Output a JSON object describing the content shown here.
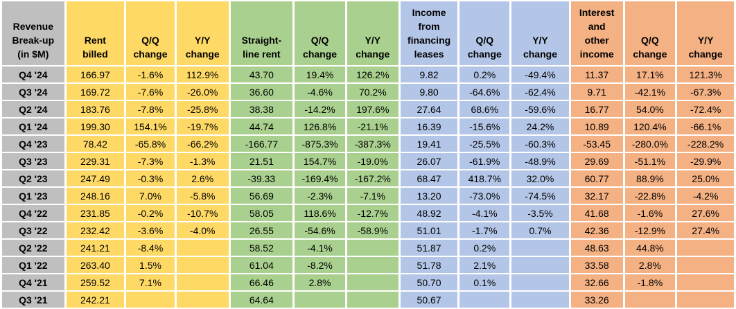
{
  "colors": {
    "gray": "#BFBFBF",
    "yellow": "#FFD966",
    "green": "#A9D08E",
    "blue": "#B4C6E7",
    "orange": "#F4B183"
  },
  "chart_data": {
    "type": "table",
    "title": "Revenue Break-up (in $M)",
    "corner_header": "Revenue\nBreak-up\n(in $M)",
    "columns": [
      {
        "key": "rent-billed",
        "header": "Rent\nbilled",
        "color": "yellow"
      },
      {
        "key": "rent-qq-change",
        "header": "Q/Q\nchange",
        "color": "yellow"
      },
      {
        "key": "rent-yy-change",
        "header": "Y/Y\nchange",
        "color": "yellow"
      },
      {
        "key": "straight-line-rent",
        "header": "Straight-\nline rent",
        "color": "green"
      },
      {
        "key": "slr-qq-change",
        "header": "Q/Q\nchange",
        "color": "green"
      },
      {
        "key": "slr-yy-change",
        "header": "Y/Y\nchange",
        "color": "green"
      },
      {
        "key": "financing-lease-income",
        "header": "Income\nfrom\nfinancing\nleases",
        "color": "blue"
      },
      {
        "key": "fli-qq-change",
        "header": "Q/Q\nchange",
        "color": "blue"
      },
      {
        "key": "fli-yy-change",
        "header": "Y/Y\nchange",
        "color": "blue"
      },
      {
        "key": "interest-other-income",
        "header": "Interest\nand\nother\nincome",
        "color": "orange"
      },
      {
        "key": "ioi-qq-change",
        "header": "Q/Q\nchange",
        "color": "orange"
      },
      {
        "key": "ioi-yy-change",
        "header": "Y/Y\nchange",
        "color": "orange"
      }
    ],
    "categories": [
      "Q4 '24",
      "Q3 '24",
      "Q2 '24",
      "Q1 '24",
      "Q4 '23",
      "Q3 '23",
      "Q2 '23",
      "Q1 '23",
      "Q4 '22",
      "Q3 '22",
      "Q2 '22",
      "Q1 '22",
      "Q4 '21",
      "Q3 '21"
    ],
    "rows": [
      {
        "label": "Q4 '24",
        "cells": [
          "166.97",
          "-1.6%",
          "112.9%",
          "43.70",
          "19.4%",
          "126.2%",
          "9.82",
          "0.2%",
          "-49.4%",
          "11.37",
          "17.1%",
          "121.3%"
        ]
      },
      {
        "label": "Q3 '24",
        "cells": [
          "169.72",
          "-7.6%",
          "-26.0%",
          "36.60",
          "-4.6%",
          "70.2%",
          "9.80",
          "-64.6%",
          "-62.4%",
          "9.71",
          "-42.1%",
          "-67.3%"
        ]
      },
      {
        "label": "Q2 '24",
        "cells": [
          "183.76",
          "-7.8%",
          "-25.8%",
          "38.38",
          "-14.2%",
          "197.6%",
          "27.64",
          "68.6%",
          "-59.6%",
          "16.77",
          "54.0%",
          "-72.4%"
        ]
      },
      {
        "label": "Q1 '24",
        "cells": [
          "199.30",
          "154.1%",
          "-19.7%",
          "44.74",
          "126.8%",
          "-21.1%",
          "16.39",
          "-15.6%",
          "24.2%",
          "10.89",
          "120.4%",
          "-66.1%"
        ]
      },
      {
        "label": "Q4 '23",
        "cells": [
          "78.42",
          "-65.8%",
          "-66.2%",
          "-166.77",
          "-875.3%",
          "-387.3%",
          "19.41",
          "-25.5%",
          "-60.3%",
          "-53.45",
          "-280.0%",
          "-228.2%"
        ]
      },
      {
        "label": "Q3 '23",
        "cells": [
          "229.31",
          "-7.3%",
          "-1.3%",
          "21.51",
          "154.7%",
          "-19.0%",
          "26.07",
          "-61.9%",
          "-48.9%",
          "29.69",
          "-51.1%",
          "-29.9%"
        ]
      },
      {
        "label": "Q2 '23",
        "cells": [
          "247.49",
          "-0.3%",
          "2.6%",
          "-39.33",
          "-169.4%",
          "-167.2%",
          "68.47",
          "418.7%",
          "32.0%",
          "60.77",
          "88.9%",
          "25.0%"
        ]
      },
      {
        "label": "Q1 '23",
        "cells": [
          "248.16",
          "7.0%",
          "-5.8%",
          "56.69",
          "-2.3%",
          "-7.1%",
          "13.20",
          "-73.0%",
          "-74.5%",
          "32.17",
          "-22.8%",
          "-4.2%"
        ]
      },
      {
        "label": "Q4 '22",
        "cells": [
          "231.85",
          "-0.2%",
          "-10.7%",
          "58.05",
          "118.6%",
          "-12.7%",
          "48.92",
          "-4.1%",
          "-3.5%",
          "41.68",
          "-1.6%",
          "27.6%"
        ]
      },
      {
        "label": "Q3 '22",
        "cells": [
          "232.42",
          "-3.6%",
          "-4.0%",
          "26.55",
          "-54.6%",
          "-58.9%",
          "51.01",
          "-1.7%",
          "0.7%",
          "42.36",
          "-12.9%",
          "27.4%"
        ]
      },
      {
        "label": "Q2 '22",
        "cells": [
          "241.21",
          "-8.4%",
          "",
          "58.52",
          "-4.1%",
          "",
          "51.87",
          "0.2%",
          "",
          "48.63",
          "44.8%",
          ""
        ]
      },
      {
        "label": "Q1 '22",
        "cells": [
          "263.40",
          "1.5%",
          "",
          "61.04",
          "-8.2%",
          "",
          "51.78",
          "2.1%",
          "",
          "33.58",
          "2.8%",
          ""
        ]
      },
      {
        "label": "Q4 '21",
        "cells": [
          "259.52",
          "7.1%",
          "",
          "66.46",
          "2.8%",
          "",
          "50.70",
          "0.1%",
          "",
          "32.66",
          "-1.8%",
          ""
        ]
      },
      {
        "label": "Q3 '21",
        "cells": [
          "242.21",
          "",
          "",
          "64.64",
          "",
          "",
          "50.67",
          "",
          "",
          "33.26",
          "",
          ""
        ]
      }
    ]
  }
}
